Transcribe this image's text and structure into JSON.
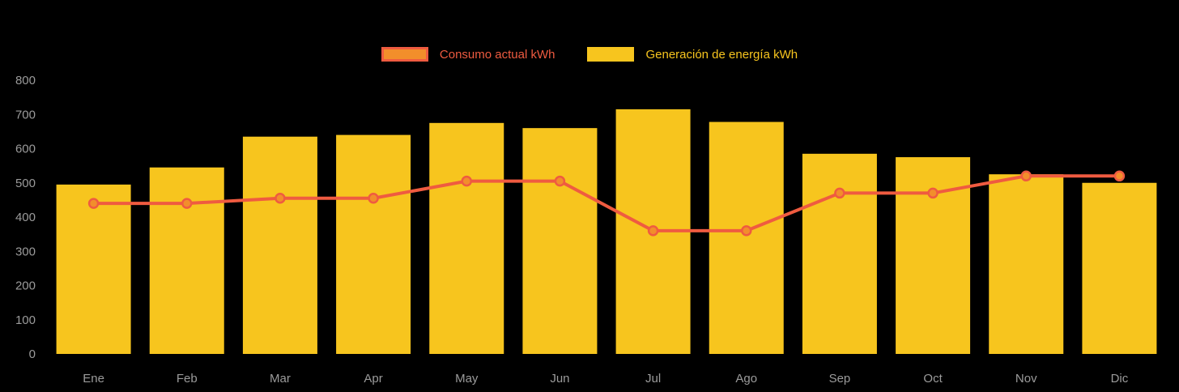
{
  "chart_data": {
    "type": "bar",
    "categories": [
      "Ene",
      "Feb",
      "Mar",
      "Apr",
      "May",
      "Jun",
      "Jul",
      "Ago",
      "Sep",
      "Oct",
      "Nov",
      "Dic"
    ],
    "series": [
      {
        "name": "Consumo actual kWh",
        "type": "line",
        "color": "#EF5B40",
        "point_fill": "#F28E2B",
        "values": [
          440,
          440,
          455,
          455,
          505,
          505,
          360,
          360,
          470,
          470,
          520,
          520
        ]
      },
      {
        "name": "Generación de energía kWh",
        "type": "bar",
        "color": "#F7C51E",
        "values": [
          495,
          545,
          635,
          640,
          675,
          660,
          715,
          678,
          585,
          575,
          525,
          500
        ]
      }
    ],
    "title": "",
    "xlabel": "",
    "ylabel": "",
    "ylim": [
      0,
      800
    ],
    "ytick_step": 100,
    "grid": false,
    "legend_position": "top"
  },
  "legend": {
    "items": [
      {
        "label": "Consumo actual kWh",
        "swatch_fill": "#F28E2B",
        "swatch_border": "#EF5B40",
        "text_color": "#EF5B40"
      },
      {
        "label": "Generación de energía kWh",
        "swatch_fill": "#F7C51E",
        "swatch_border": "#F7C51E",
        "text_color": "#F7C51E"
      }
    ]
  },
  "axes": {
    "y_ticks": [
      "0",
      "100",
      "200",
      "300",
      "400",
      "500",
      "600",
      "700",
      "800"
    ],
    "x_ticks": [
      "Ene",
      "Feb",
      "Mar",
      "Apr",
      "May",
      "Jun",
      "Jul",
      "Ago",
      "Sep",
      "Oct",
      "Nov",
      "Dic"
    ],
    "tick_color": "#9B9B9B"
  },
  "colors": {
    "background": "#000000",
    "bar": "#F7C51E",
    "line": "#EF5B40",
    "point_fill": "#F28E2B"
  }
}
